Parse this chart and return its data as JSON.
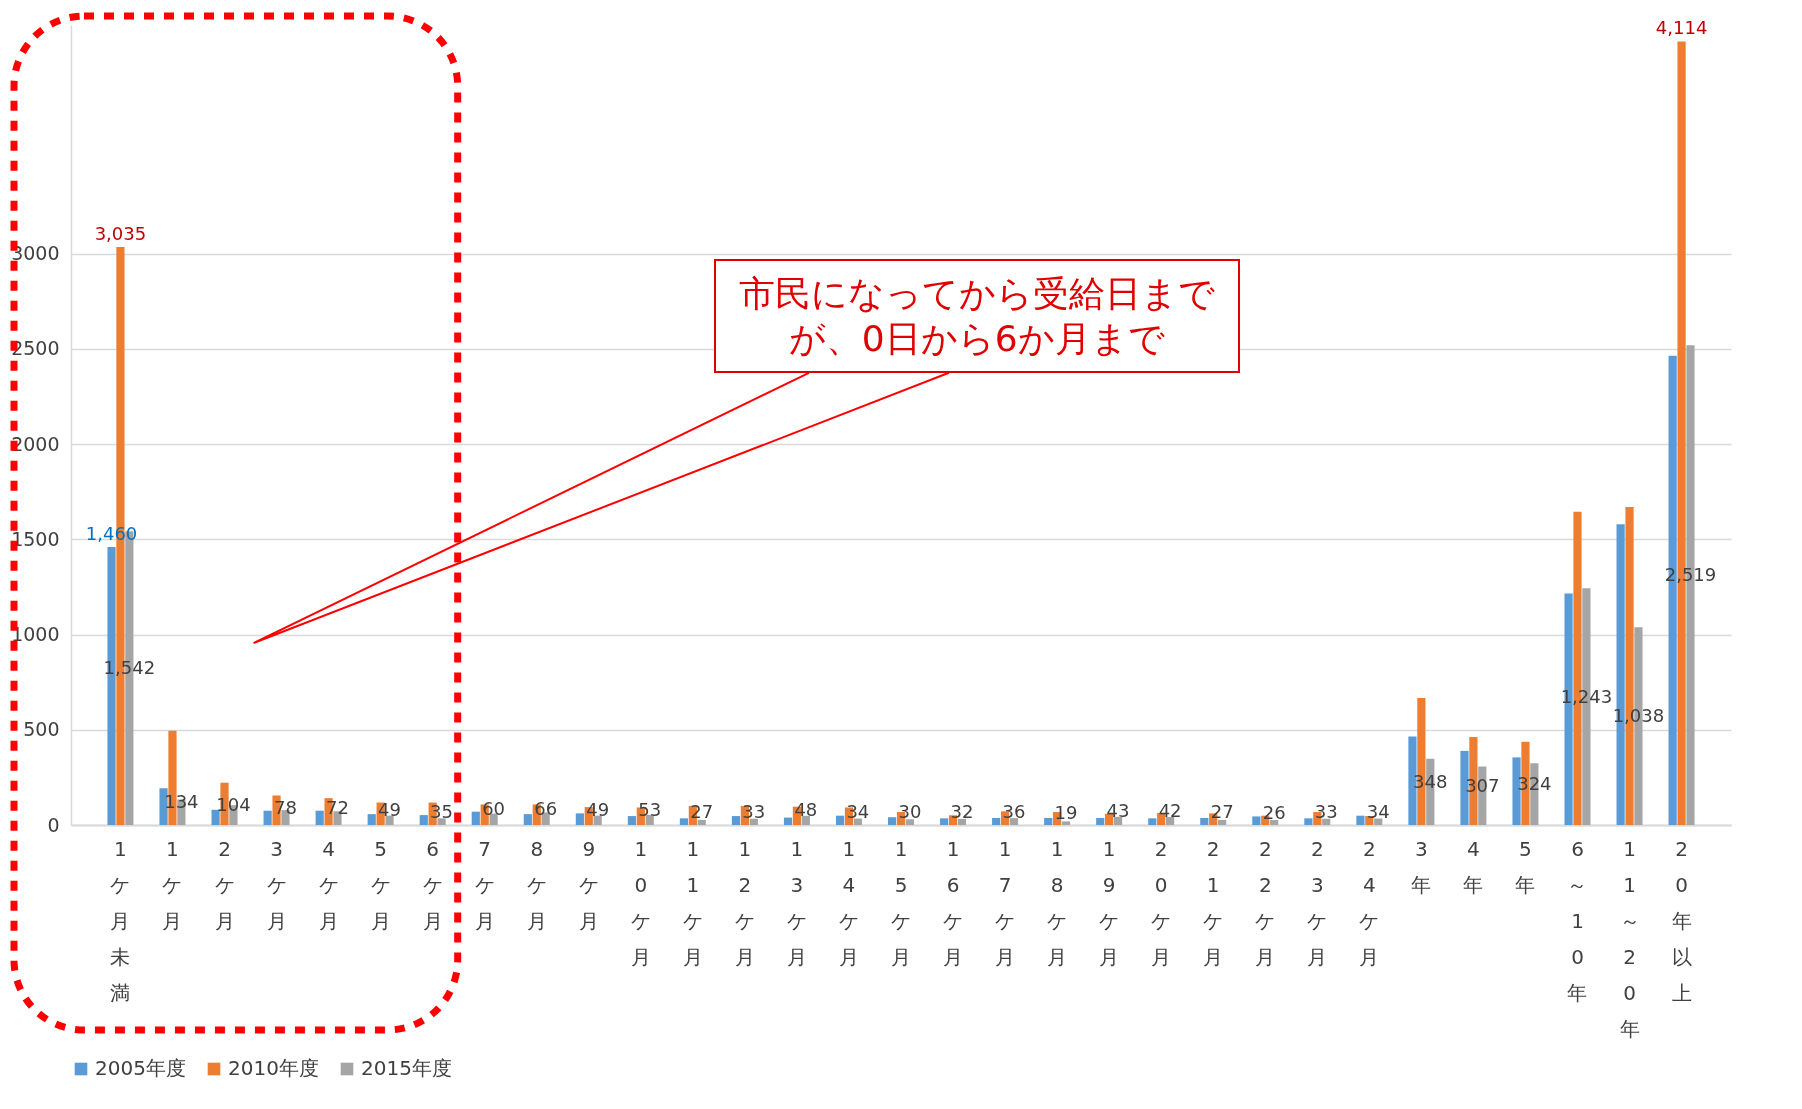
{
  "chart_data": {
    "type": "bar",
    "categories": [
      "1ケ月未満",
      "1ケ月",
      "2ケ月",
      "3ケ月",
      "4ケ月",
      "5ケ月",
      "6ケ月",
      "7ケ月",
      "8ケ月",
      "9ケ月",
      "10ケ月",
      "11ケ月",
      "12ケ月",
      "13ケ月",
      "14ケ月",
      "15ケ月",
      "16ケ月",
      "17ケ月",
      "18ケ月",
      "19ケ月",
      "20ケ月",
      "21ケ月",
      "22ケ月",
      "23ケ月",
      "24ケ月",
      "3年",
      "4年",
      "5年",
      "6～10年",
      "11～20年",
      "20年以上"
    ],
    "series": [
      {
        "name": "2005年度",
        "color": "#5b9bd5",
        "values": [
          1460,
          193,
          80,
          75,
          75,
          57,
          52,
          70,
          57,
          61,
          47,
          35,
          47,
          39,
          49,
          41,
          35,
          37,
          37,
          37,
          35,
          37,
          45,
          35,
          49,
          464,
          389,
          355,
          1215,
          1579,
          2464
        ],
        "value_labels": [
          "1,460",
          null,
          null,
          null,
          null,
          null,
          null,
          null,
          null,
          null,
          null,
          null,
          null,
          null,
          null,
          null,
          null,
          null,
          null,
          null,
          null,
          null,
          null,
          null,
          null,
          null,
          null,
          null,
          null,
          null,
          null
        ]
      },
      {
        "name": "2010年度",
        "color": "#ed7d31",
        "values": [
          3035,
          495,
          222,
          155,
          141,
          118,
          118,
          108,
          108,
          94,
          92,
          100,
          100,
          96,
          92,
          68,
          51,
          72,
          68,
          59,
          63,
          61,
          49,
          68,
          47,
          667,
          462,
          437,
          1645,
          1670,
          4114
        ],
        "value_labels": [
          "3,035",
          null,
          null,
          null,
          null,
          null,
          null,
          null,
          null,
          null,
          null,
          null,
          null,
          null,
          null,
          null,
          null,
          null,
          null,
          null,
          null,
          null,
          null,
          null,
          null,
          null,
          null,
          null,
          null,
          null,
          "4,114"
        ]
      },
      {
        "name": "2015年度",
        "color": "#a5a5a5",
        "values": [
          1542,
          134,
          104,
          78,
          72,
          49,
          35,
          60,
          66,
          49,
          53,
          27,
          33,
          48,
          34,
          30,
          32,
          36,
          19,
          43,
          42,
          27,
          26,
          33,
          34,
          348,
          307,
          324,
          1243,
          1038,
          2519
        ],
        "value_labels": [
          "1,542",
          "134",
          "104",
          "78",
          "72",
          "49",
          "35",
          "60",
          "66",
          "49",
          "53",
          "27",
          "33",
          "48",
          "34",
          "30",
          "32",
          "36",
          "19",
          "43",
          "42",
          "27",
          "26",
          "33",
          "34",
          "348",
          "307",
          "324",
          "1,243",
          "1,038",
          "2,519"
        ]
      }
    ],
    "ylim": [
      0,
      4200
    ],
    "yticks": [
      0,
      500,
      1000,
      1500,
      2000,
      2500,
      3000
    ],
    "grid": "y",
    "legend": "bottom",
    "annotations": [
      "市民になってから受給日までが、0日から6か月まで"
    ]
  }
}
